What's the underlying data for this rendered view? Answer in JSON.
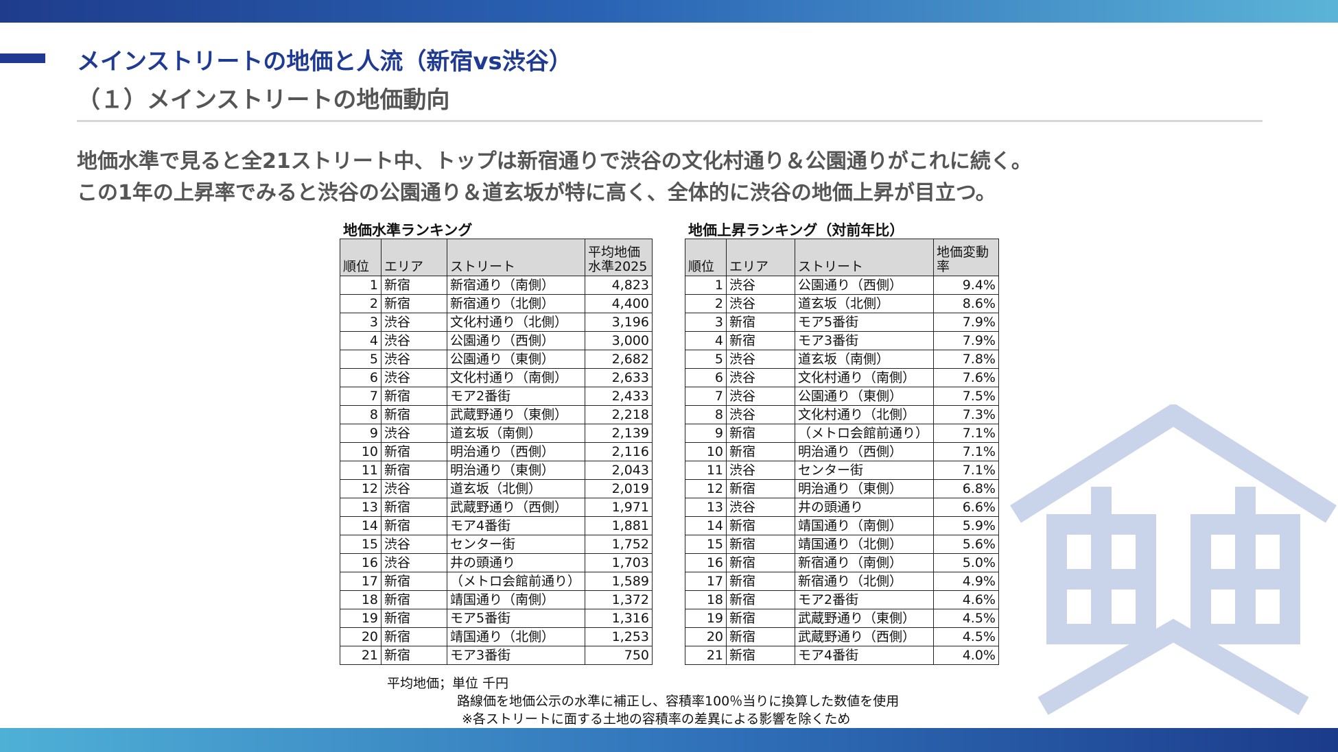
{
  "title": {
    "main": "メインストリートの地価と人流（新宿vs渋谷）",
    "sub": "（１）メインストリートの地価動向"
  },
  "lead": {
    "line1": "地価水準で見ると全21ストリート中、トップは新宿通りで渋谷の文化村通り＆公園通りがこれに続く。",
    "line2": "この1年の上昇率でみると渋谷の公園通り＆道玄坂が特に高く、全体的に渋谷の地価上昇が目立つ。"
  },
  "level_table": {
    "caption": "地価水準ランキング",
    "headers": {
      "rank": "順位",
      "area": "エリア",
      "street": "ストリート",
      "value_line1": "平均地価",
      "value_line2": "水準2025"
    },
    "rows": [
      {
        "rank": "1",
        "area": "新宿",
        "street": "新宿通り（南側）",
        "value": "4,823"
      },
      {
        "rank": "2",
        "area": "新宿",
        "street": "新宿通り（北側）",
        "value": "4,400"
      },
      {
        "rank": "3",
        "area": "渋谷",
        "street": "文化村通り（北側）",
        "value": "3,196"
      },
      {
        "rank": "4",
        "area": "渋谷",
        "street": "公園通り（西側）",
        "value": "3,000"
      },
      {
        "rank": "5",
        "area": "渋谷",
        "street": "公園通り（東側）",
        "value": "2,682"
      },
      {
        "rank": "6",
        "area": "渋谷",
        "street": "文化村通り（南側）",
        "value": "2,633"
      },
      {
        "rank": "7",
        "area": "新宿",
        "street": "モア2番街",
        "value": "2,433"
      },
      {
        "rank": "8",
        "area": "新宿",
        "street": "武蔵野通り（東側）",
        "value": "2,218"
      },
      {
        "rank": "9",
        "area": "渋谷",
        "street": "道玄坂（南側）",
        "value": "2,139"
      },
      {
        "rank": "10",
        "area": "新宿",
        "street": "明治通り（西側）",
        "value": "2,116"
      },
      {
        "rank": "11",
        "area": "新宿",
        "street": "明治通り（東側）",
        "value": "2,043"
      },
      {
        "rank": "12",
        "area": "渋谷",
        "street": "道玄坂（北側）",
        "value": "2,019"
      },
      {
        "rank": "13",
        "area": "新宿",
        "street": "武蔵野通り（西側）",
        "value": "1,971"
      },
      {
        "rank": "14",
        "area": "新宿",
        "street": "モア4番街",
        "value": "1,881"
      },
      {
        "rank": "15",
        "area": "渋谷",
        "street": "センター街",
        "value": "1,752"
      },
      {
        "rank": "16",
        "area": "渋谷",
        "street": "井の頭通り",
        "value": "1,703"
      },
      {
        "rank": "17",
        "area": "新宿",
        "street": "（メトロ会館前通り）",
        "value": "1,589"
      },
      {
        "rank": "18",
        "area": "新宿",
        "street": "靖国通り（南側）",
        "value": "1,372"
      },
      {
        "rank": "19",
        "area": "新宿",
        "street": "モア5番街",
        "value": "1,316"
      },
      {
        "rank": "20",
        "area": "新宿",
        "street": "靖国通り（北側）",
        "value": "1,253"
      },
      {
        "rank": "21",
        "area": "新宿",
        "street": "モア3番街",
        "value": "750"
      }
    ]
  },
  "change_table": {
    "caption": "地価上昇ランキング（対前年比）",
    "headers": {
      "rank": "順位",
      "area": "エリア",
      "street": "ストリート",
      "value_line1": "地価変動",
      "value_line2": "率"
    },
    "rows": [
      {
        "rank": "1",
        "area": "渋谷",
        "street": "公園通り（西側）",
        "value": "9.4%"
      },
      {
        "rank": "2",
        "area": "渋谷",
        "street": "道玄坂（北側）",
        "value": "8.6%"
      },
      {
        "rank": "3",
        "area": "新宿",
        "street": "モア5番街",
        "value": "7.9%"
      },
      {
        "rank": "4",
        "area": "新宿",
        "street": "モア3番街",
        "value": "7.9%"
      },
      {
        "rank": "5",
        "area": "渋谷",
        "street": "道玄坂（南側）",
        "value": "7.8%"
      },
      {
        "rank": "6",
        "area": "渋谷",
        "street": "文化村通り（南側）",
        "value": "7.6%"
      },
      {
        "rank": "7",
        "area": "渋谷",
        "street": "公園通り（東側）",
        "value": "7.5%"
      },
      {
        "rank": "8",
        "area": "渋谷",
        "street": "文化村通り（北側）",
        "value": "7.3%"
      },
      {
        "rank": "9",
        "area": "新宿",
        "street": "（メトロ会館前通り）",
        "value": "7.1%"
      },
      {
        "rank": "10",
        "area": "新宿",
        "street": "明治通り（西側）",
        "value": "7.1%"
      },
      {
        "rank": "11",
        "area": "渋谷",
        "street": "センター街",
        "value": "7.1%"
      },
      {
        "rank": "12",
        "area": "新宿",
        "street": "明治通り（東側）",
        "value": "6.8%"
      },
      {
        "rank": "13",
        "area": "渋谷",
        "street": "井の頭通り",
        "value": "6.6%"
      },
      {
        "rank": "14",
        "area": "新宿",
        "street": "靖国通り（南側）",
        "value": "5.9%"
      },
      {
        "rank": "15",
        "area": "新宿",
        "street": "靖国通り（北側）",
        "value": "5.6%"
      },
      {
        "rank": "16",
        "area": "新宿",
        "street": "新宿通り（南側）",
        "value": "5.0%"
      },
      {
        "rank": "17",
        "area": "新宿",
        "street": "新宿通り（北側）",
        "value": "4.9%"
      },
      {
        "rank": "18",
        "area": "新宿",
        "street": "モア2番街",
        "value": "4.6%"
      },
      {
        "rank": "19",
        "area": "新宿",
        "street": "武蔵野通り（東側）",
        "value": "4.5%"
      },
      {
        "rank": "20",
        "area": "新宿",
        "street": "武蔵野通り（西側）",
        "value": "4.5%"
      },
      {
        "rank": "21",
        "area": "新宿",
        "street": "モア4番街",
        "value": "4.0%"
      }
    ]
  },
  "notes": {
    "unit": "平均地価；単位 千円",
    "method": "路線価を地価公示の水準に補正し、容積率100％当りに換算した数値を使用",
    "reason": "※各ストリートに面する土地の容積率の差異による影響を除くため"
  },
  "colors": {
    "accent": "#1f3a93",
    "bar_light": "#5bb4d8",
    "watermark": "#c9d4ea",
    "header_fill": "#d9d9d9"
  }
}
